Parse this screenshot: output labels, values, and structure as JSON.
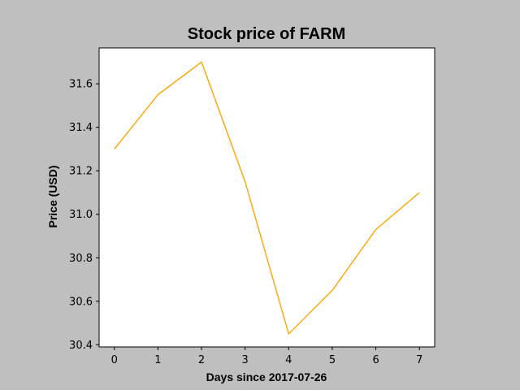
{
  "colors": {
    "figure_background": "#bfbfbf",
    "plot_background": "#ffffff",
    "line": "#ffa500"
  },
  "chart_data": {
    "type": "line",
    "title": "Stock price of FARM",
    "xlabel": "Days since 2017-07-26",
    "ylabel": "Price (USD)",
    "xlim": [
      -0.35,
      7.35
    ],
    "ylim": [
      30.39,
      31.765
    ],
    "xticks": [
      0,
      1,
      2,
      3,
      4,
      5,
      6,
      7
    ],
    "xtick_labels": [
      "0",
      "1",
      "2",
      "3",
      "4",
      "5",
      "6",
      "7"
    ],
    "yticks": [
      30.4,
      30.6,
      30.8,
      31.0,
      31.2,
      31.4,
      31.6
    ],
    "ytick_labels": [
      "30.4",
      "30.6",
      "30.8",
      "31.0",
      "31.2",
      "31.4",
      "31.6"
    ],
    "grid": false,
    "series": [
      {
        "x": [
          0,
          1,
          2,
          3,
          4,
          5,
          6,
          7
        ],
        "y": [
          31.3,
          31.55,
          31.7,
          31.15,
          30.45,
          30.65,
          30.93,
          31.1
        ]
      }
    ]
  }
}
